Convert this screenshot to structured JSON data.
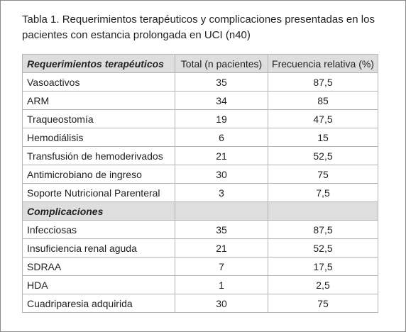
{
  "caption": "Tabla 1. Requerimientos terapéuticos y complicaciones presentadas en los pacientes con estancia prolongada en UCI (n40)",
  "table": {
    "columns": [
      "Requerimientos terapéuticos",
      "Total (n pacientes)",
      "Frecuencia relativa (%)"
    ],
    "requirement_rows": [
      [
        "Vasoactivos",
        "35",
        "87,5"
      ],
      [
        "ARM",
        "34",
        "85"
      ],
      [
        "Traqueostomía",
        "19",
        "47,5"
      ],
      [
        "Hemodiálisis",
        "6",
        "15"
      ],
      [
        "Transfusión de hemoderivados",
        "21",
        "52,5"
      ],
      [
        "Antimicrobiano de ingreso",
        "30",
        "75"
      ],
      [
        "Soporte Nutricional Parenteral",
        "3",
        "7,5"
      ]
    ],
    "complications_title": "Complicaciones",
    "complication_rows": [
      [
        "Infecciosas",
        "35",
        "87,5"
      ],
      [
        "Insuficiencia renal aguda",
        "21",
        "52,5"
      ],
      [
        "SDRAA",
        "7",
        "17,5"
      ],
      [
        "HDA",
        "1",
        "2,5"
      ],
      [
        "Cuadriparesia adquirida",
        "30",
        "75"
      ]
    ]
  }
}
